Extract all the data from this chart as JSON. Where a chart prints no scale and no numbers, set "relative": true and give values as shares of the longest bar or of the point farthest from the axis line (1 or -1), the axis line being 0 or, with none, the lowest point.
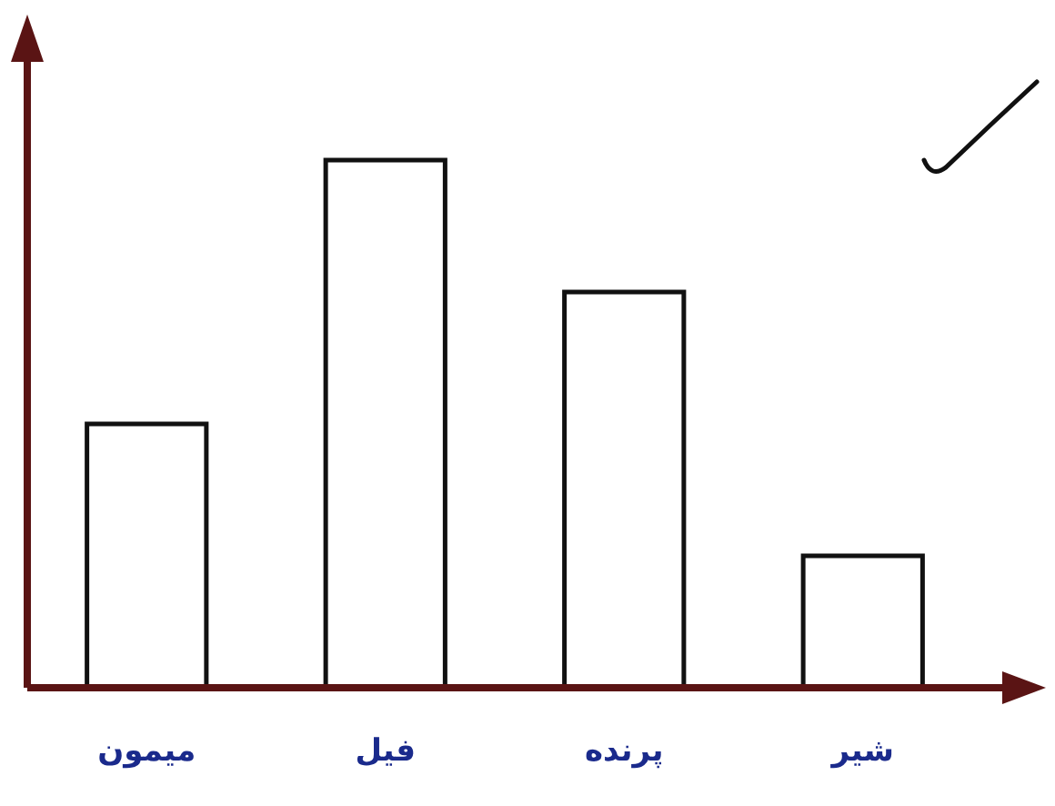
{
  "chart_data": {
    "type": "bar",
    "relative": true,
    "categories": [
      "میمون",
      "فیل",
      "پرنده",
      "شیر"
    ],
    "values": [
      0.5,
      1,
      0.75,
      0.25
    ],
    "color": "#ffffff"
  }
}
